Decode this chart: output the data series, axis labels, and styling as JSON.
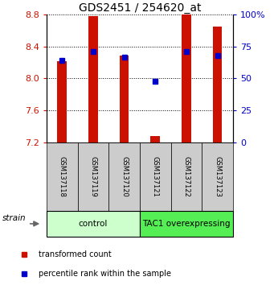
{
  "title": "GDS2451 / 254620_at",
  "samples": [
    "GSM137118",
    "GSM137119",
    "GSM137120",
    "GSM137121",
    "GSM137122",
    "GSM137123"
  ],
  "red_values": [
    8.21,
    8.78,
    8.28,
    7.28,
    8.8,
    8.65
  ],
  "blue_values": [
    8.22,
    8.335,
    8.265,
    7.965,
    8.335,
    8.285
  ],
  "ymin": 7.2,
  "ymax": 8.8,
  "yticks": [
    7.2,
    7.6,
    8.0,
    8.4,
    8.8
  ],
  "right_yticks": [
    0,
    25,
    50,
    75,
    100
  ],
  "right_ytick_labels": [
    "0",
    "25",
    "50",
    "75",
    "100%"
  ],
  "control_label": "control",
  "tac1_label": "TAC1 overexpressing",
  "strain_label": "strain",
  "legend_red": "transformed count",
  "legend_blue": "percentile rank within the sample",
  "bar_width": 0.3,
  "red_color": "#cc1100",
  "blue_color": "#0000cc",
  "control_bg": "#ccffcc",
  "tac1_bg": "#55ee55",
  "tick_label_bg": "#cccccc",
  "title_fontsize": 10,
  "axis_fontsize": 8,
  "label_fontsize": 7
}
